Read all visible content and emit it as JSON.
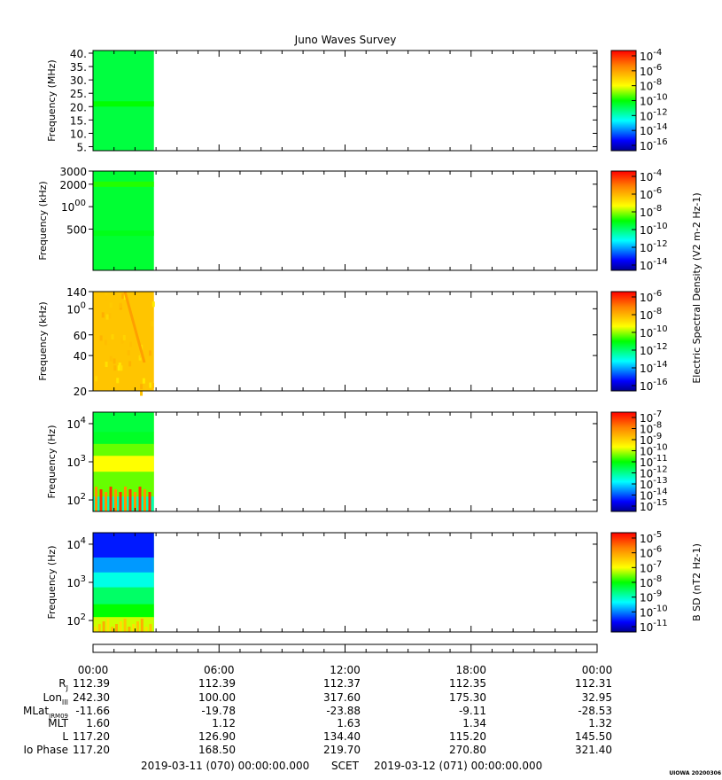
{
  "chart_data": {
    "type": "heatmap",
    "title": "Juno Waves Survey",
    "panels": [
      {
        "ylabel": "Frequency (MHz)",
        "yscale": "linear",
        "ylim": [
          3.5,
          41
        ],
        "yticks": [
          "40.",
          "35.",
          "30.",
          "25.",
          "20.",
          "15.",
          "10.",
          "5."
        ],
        "ytick_values": [
          40,
          35,
          30,
          25,
          20,
          15,
          10,
          5
        ],
        "colorbar_ticks": [
          "10-4",
          "10-6",
          "10-8",
          "10-10",
          "10-12",
          "10-14",
          "10-16"
        ],
        "colorbar_exponents": [
          -4,
          -6,
          -8,
          -10,
          -12,
          -14,
          -16
        ],
        "colorbar_label": "",
        "data_end_hour": 2.9,
        "background_level": 0.45,
        "bands": [
          {
            "y": 21,
            "level": 0.36
          }
        ]
      },
      {
        "ylabel": "Frequency (kHz)",
        "yscale": "log",
        "ylim": [
          140,
          3000
        ],
        "yticks": [
          "3000",
          "2000",
          "1000",
          "500"
        ],
        "ytick_values": [
          3000,
          2000,
          1000,
          500
        ],
        "colorbar_ticks": [
          "10-4",
          "10-6",
          "10-8",
          "10-10",
          "10-12",
          "10-14"
        ],
        "colorbar_exponents": [
          -4,
          -6,
          -8,
          -10,
          -12,
          -14
        ],
        "colorbar_label": "Electric Spectral Density (V2 m-2 Hz-1)",
        "data_end_hour": 2.9,
        "background_level": 0.46,
        "bands": [
          {
            "y": 2000,
            "level": 0.38
          },
          {
            "y": 440,
            "level": 0.34
          }
        ]
      },
      {
        "ylabel": "Frequency (kHz)",
        "yscale": "log",
        "ylim": [
          20,
          140
        ],
        "yticks": [
          "140",
          "100",
          "60",
          "40",
          "20"
        ],
        "ytick_values": [
          140,
          100,
          60,
          40,
          20
        ],
        "colorbar_ticks": [
          "10-6",
          "10-8",
          "10-10",
          "10-12",
          "10-14",
          "10-16"
        ],
        "colorbar_exponents": [
          -6,
          -8,
          -10,
          -12,
          -14,
          -16
        ],
        "colorbar_label": "",
        "data_end_hour": 2.9,
        "background_level": 0.74,
        "bands": []
      },
      {
        "ylabel": "Frequency (Hz)",
        "yscale": "log",
        "ylim": [
          50,
          20000
        ],
        "yticks": [
          "104",
          "103",
          "102"
        ],
        "ytick_values": [
          10000,
          1000,
          100
        ],
        "colorbar_ticks": [
          "10-7",
          "10-8",
          "10-9",
          "10-10",
          "10-11",
          "10-12",
          "10-13",
          "10-14",
          "10-15"
        ],
        "colorbar_exponents": [
          -7,
          -8,
          -9,
          -10,
          -11,
          -12,
          -13,
          -14,
          -15
        ],
        "colorbar_label": "",
        "data_end_hour": 2.9,
        "background_level": 0.6,
        "bands": []
      },
      {
        "ylabel": "Frequency (Hz)",
        "yscale": "log",
        "ylim": [
          50,
          20000
        ],
        "yticks": [
          "104",
          "103",
          "102"
        ],
        "ytick_values": [
          10000,
          1000,
          100
        ],
        "colorbar_ticks": [
          "10-5",
          "10-6",
          "10-7",
          "10-8",
          "10-9",
          "10-10",
          "10-11"
        ],
        "colorbar_exponents": [
          -5,
          -6,
          -7,
          -8,
          -9,
          -10,
          -11
        ],
        "colorbar_label": "B SD (nT2 Hz-1)",
        "data_end_hour": 2.9,
        "background_level": 0.5,
        "bands": []
      }
    ],
    "xlim_hours": [
      0,
      24
    ],
    "x_major_ticks": [
      "00:00",
      "06:00",
      "12:00",
      "18:00",
      "00:00"
    ],
    "x_major_hours": [
      0,
      6,
      12,
      18,
      24
    ],
    "ephemeris": {
      "row_labels": [
        "RJ",
        "LonIII",
        "MLatJRM09",
        "MLT",
        "L",
        "Io Phase"
      ],
      "columns": [
        [
          "112.39",
          "242.30",
          "-11.66",
          "1.60",
          "117.20",
          "117.20"
        ],
        [
          "112.39",
          "100.00",
          "-19.78",
          "1.12",
          "126.90",
          "168.50"
        ],
        [
          "112.37",
          "317.60",
          "-23.88",
          "1.63",
          "134.40",
          "219.70"
        ],
        [
          "112.35",
          "175.30",
          "-9.11",
          "1.34",
          "115.20",
          "270.80"
        ],
        [
          "112.31",
          "32.95",
          "-28.53",
          "1.32",
          "145.50",
          "321.40"
        ]
      ]
    },
    "footer": {
      "start": "2019-03-11 (070) 00:00:00.000",
      "center": "SCET",
      "end": "2019-03-12 (071) 00:00:00.000"
    },
    "stamp": "UIOWA 20200306"
  }
}
